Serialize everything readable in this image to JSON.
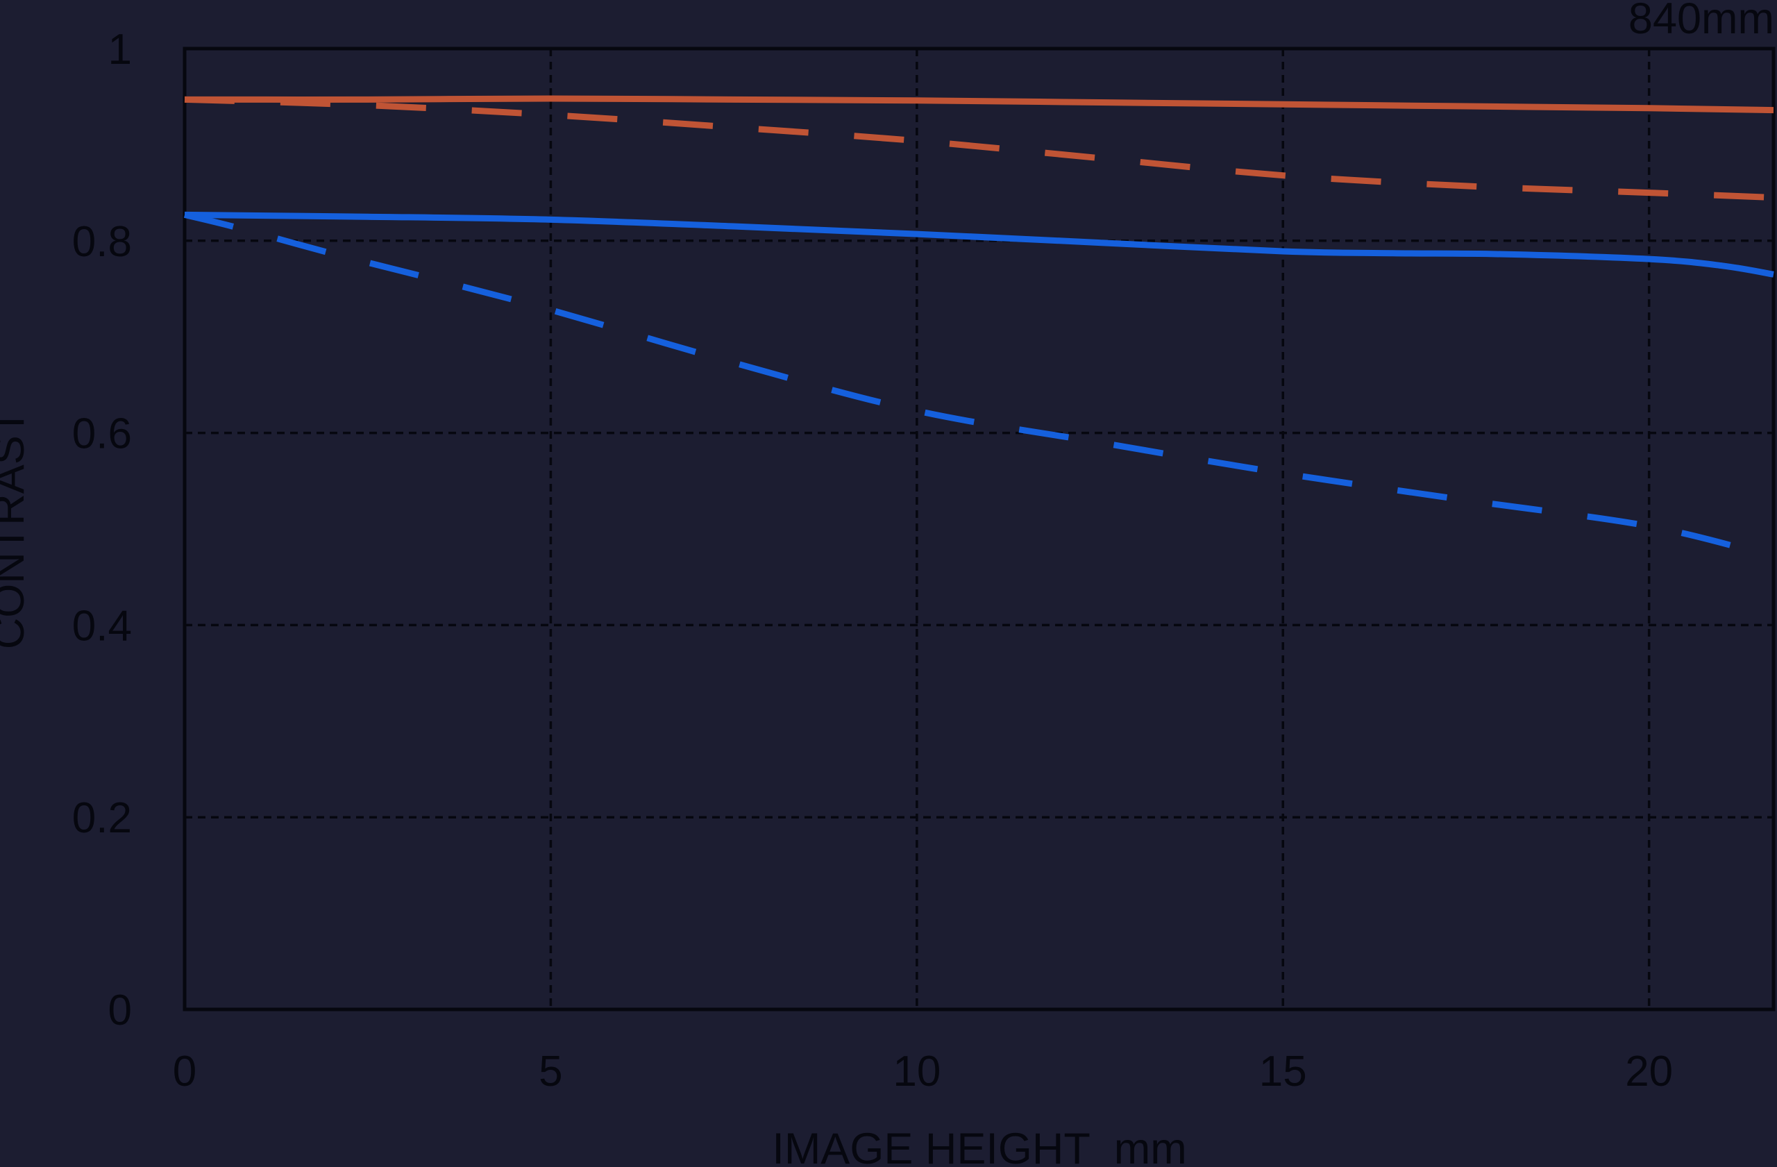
{
  "page": {
    "background": "#1c1d31",
    "ink_color": "#06070f"
  },
  "chart_data": {
    "type": "line",
    "title": "840mm",
    "xlabel": "IMAGE HEIGHT  mm",
    "ylabel": "CONTRAST",
    "xlim": [
      0,
      21.7
    ],
    "ylim": [
      0,
      1
    ],
    "x_ticks": [
      0,
      5,
      10,
      15,
      20
    ],
    "y_ticks": [
      0,
      0.2,
      0.4,
      0.6,
      0.8,
      1
    ],
    "y_tick_labels": [
      "0",
      "0.2",
      "0.4",
      "0.6",
      "0.8",
      "1"
    ],
    "grid": true,
    "legend_position": "none",
    "series": [
      {
        "name": "orange-solid",
        "color": "#c05435",
        "style": "solid",
        "x": [
          0,
          2.5,
          5,
          7.5,
          10,
          12.5,
          15,
          17.5,
          20,
          21.7
        ],
        "y": [
          0.947,
          0.947,
          0.948,
          0.947,
          0.946,
          0.944,
          0.942,
          0.94,
          0.938,
          0.936
        ]
      },
      {
        "name": "orange-dashed",
        "color": "#c05435",
        "style": "dashed",
        "x": [
          0,
          2.5,
          5,
          7.5,
          10,
          12.5,
          15,
          17.5,
          20,
          21.7
        ],
        "y": [
          0.947,
          0.941,
          0.931,
          0.918,
          0.904,
          0.886,
          0.868,
          0.857,
          0.85,
          0.845
        ]
      },
      {
        "name": "blue-solid",
        "color": "#1560dd",
        "style": "solid",
        "x": [
          0,
          2.5,
          5,
          7.5,
          10,
          12.5,
          15,
          16.5,
          18,
          20,
          21,
          21.7
        ],
        "y": [
          0.827,
          0.825,
          0.822,
          0.815,
          0.807,
          0.798,
          0.789,
          0.787,
          0.786,
          0.781,
          0.774,
          0.765
        ]
      },
      {
        "name": "blue-dashed",
        "color": "#1560dd",
        "style": "dashed",
        "x": [
          0,
          0.7,
          2,
          3.3,
          5,
          7.5,
          10,
          12.5,
          15,
          17.5,
          20,
          21.7
        ],
        "y": [
          0.827,
          0.814,
          0.787,
          0.762,
          0.728,
          0.673,
          0.623,
          0.59,
          0.558,
          0.53,
          0.503,
          0.471
        ]
      }
    ]
  }
}
